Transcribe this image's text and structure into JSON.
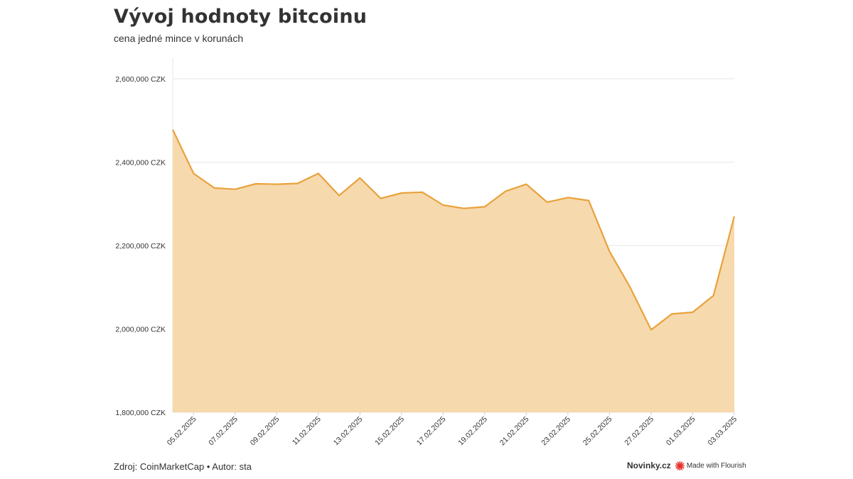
{
  "header": {
    "title": "Vývoj hodnoty bitcoinu",
    "subtitle": "cena jedné mince v korunách"
  },
  "footer": {
    "source_label": "Zdroj:",
    "source": "CoinMarketCap",
    "separator": "•",
    "author_label": "Autor:",
    "author": "sta",
    "brand": "Novinky.cz",
    "made_with": "Made with Flourish"
  },
  "colors": {
    "line": "#e8a23c",
    "area": "#f7d9ae",
    "grid": "#e6e6e6",
    "text": "#333333",
    "flourish_icon": "#e5332a"
  },
  "chart_data": {
    "type": "area",
    "title": "Vývoj hodnoty bitcoinu",
    "subtitle": "cena jedné mince v korunách",
    "ylim": [
      1800000,
      2600000
    ],
    "y_ticks": [
      1800000,
      2000000,
      2200000,
      2400000,
      2600000
    ],
    "y_tick_labels": [
      "1,800,000 CZK",
      "2,000,000 CZK",
      "2,200,000 CZK",
      "2,400,000 CZK",
      "2,600,000 CZK"
    ],
    "x_tick_labels": [
      "05.02.2025",
      "07.02.2025",
      "09.02.2025",
      "11.02.2025",
      "13.02.2025",
      "15.02.2025",
      "17.02.2025",
      "19.02.2025",
      "21.02.2025",
      "23.02.2025",
      "25.02.2025",
      "27.02.2025",
      "01.03.2025",
      "03.03.2025"
    ],
    "grid": true,
    "series": [
      {
        "x": [
          "04.02.2025",
          "05.02.2025",
          "06.02.2025",
          "07.02.2025",
          "08.02.2025",
          "09.02.2025",
          "10.02.2025",
          "11.02.2025",
          "12.02.2025",
          "13.02.2025",
          "14.02.2025",
          "15.02.2025",
          "16.02.2025",
          "17.02.2025",
          "18.02.2025",
          "19.02.2025",
          "20.02.2025",
          "21.02.2025",
          "22.02.2025",
          "23.02.2025",
          "24.02.2025",
          "25.02.2025",
          "26.02.2025",
          "27.02.2025",
          "28.02.2025",
          "01.03.2025",
          "02.03.2025",
          "03.03.2025"
        ],
        "values": [
          2478000,
          2373000,
          2338000,
          2335000,
          2348000,
          2347000,
          2349000,
          2373000,
          2320000,
          2362000,
          2313000,
          2326000,
          2328000,
          2297000,
          2289000,
          2293000,
          2330000,
          2347000,
          2304000,
          2315000,
          2308000,
          2186000,
          2099000,
          1998000,
          2036000,
          2040000,
          2080000,
          2270000
        ]
      }
    ]
  }
}
